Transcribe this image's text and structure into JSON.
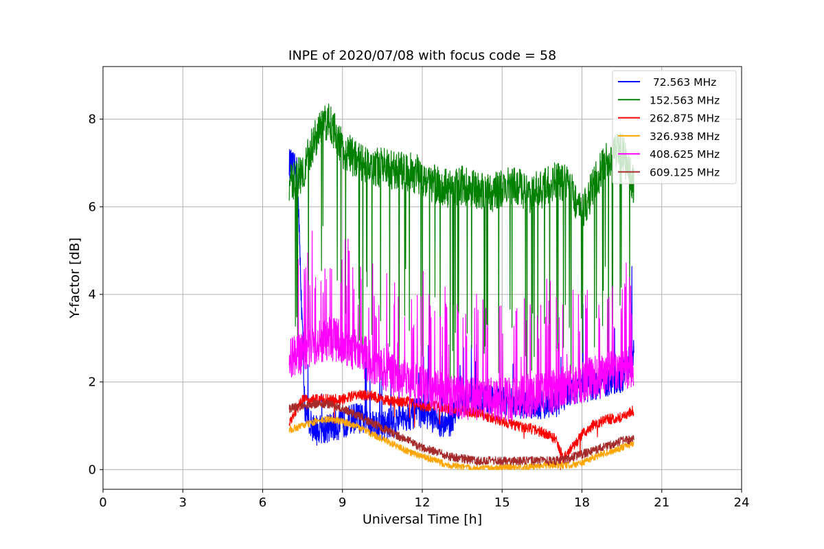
{
  "chart_data": {
    "type": "line",
    "title": "INPE of 2020/07/08 with focus code = 58",
    "xlabel": "Universal Time [h]",
    "ylabel": "Y-factor [dB]",
    "xlim": [
      0,
      24
    ],
    "ylim": [
      -0.45,
      9.2
    ],
    "xticks": [
      0,
      3,
      6,
      9,
      12,
      15,
      18,
      21,
      24
    ],
    "yticks": [
      0,
      2,
      4,
      6,
      8
    ],
    "grid": true,
    "legend_position": "top-right",
    "series": [
      {
        "name": " 72.563 MHz",
        "color": "#0000ff",
        "x": [
          7.0,
          7.3,
          7.6,
          8.0,
          8.5,
          9.0,
          9.5,
          10.0,
          10.5,
          11.0,
          11.5,
          12.0,
          12.5,
          13.0,
          13.5,
          14.0,
          14.5,
          15.0,
          15.5,
          16.0,
          16.5,
          17.0,
          17.5,
          18.0,
          18.5,
          19.0,
          19.5,
          19.95
        ],
        "y": [
          7.0,
          6.8,
          1.2,
          0.9,
          0.95,
          1.05,
          1.2,
          1.1,
          1.0,
          1.1,
          1.25,
          1.3,
          1.1,
          1.05,
          1.6,
          1.6,
          1.6,
          1.55,
          1.5,
          1.5,
          1.5,
          1.5,
          1.8,
          1.9,
          1.9,
          2.0,
          2.1,
          2.7
        ],
        "noise_amplitude": 0.35,
        "spike_probability": 0.02,
        "spike_height": 1.8
      },
      {
        "name": "152.563 MHz",
        "color": "#008000",
        "x": [
          7.0,
          7.5,
          8.0,
          8.5,
          9.0,
          9.5,
          10.0,
          10.5,
          11.0,
          11.5,
          12.0,
          12.5,
          13.0,
          13.5,
          14.0,
          14.5,
          15.0,
          15.5,
          16.0,
          16.5,
          17.0,
          17.5,
          18.0,
          18.5,
          19.0,
          19.5,
          19.95
        ],
        "y": [
          6.5,
          6.8,
          7.6,
          8.0,
          7.3,
          7.1,
          6.9,
          6.9,
          6.8,
          6.8,
          6.7,
          6.5,
          6.4,
          6.5,
          6.4,
          6.3,
          6.4,
          6.5,
          6.3,
          6.4,
          6.6,
          6.5,
          5.8,
          6.6,
          7.1,
          7.3,
          6.5
        ],
        "noise_amplitude": 0.45,
        "spike_probability": 0.05,
        "spike_height": -4.5
      },
      {
        "name": "262.875 MHz",
        "color": "#ff0000",
        "x": [
          7.0,
          7.5,
          8.0,
          8.5,
          9.0,
          9.5,
          10.0,
          10.5,
          11.0,
          11.5,
          12.0,
          12.5,
          13.0,
          13.5,
          14.0,
          14.5,
          15.0,
          15.5,
          16.0,
          16.5,
          17.0,
          17.3,
          17.7,
          18.0,
          18.5,
          19.0,
          19.5,
          19.95
        ],
        "y": [
          1.1,
          1.6,
          1.6,
          1.6,
          1.6,
          1.7,
          1.7,
          1.6,
          1.55,
          1.55,
          1.45,
          1.45,
          1.4,
          1.35,
          1.3,
          1.2,
          1.1,
          1.0,
          0.95,
          0.85,
          0.7,
          0.25,
          0.55,
          0.8,
          1.05,
          1.15,
          1.2,
          1.35
        ],
        "noise_amplitude": 0.12,
        "spike_probability": 0.004,
        "spike_height": -0.6
      },
      {
        "name": "326.938 MHz",
        "color": "#ffa500",
        "x": [
          7.0,
          7.5,
          8.0,
          8.5,
          9.0,
          9.5,
          10.0,
          10.5,
          11.0,
          11.5,
          12.0,
          12.5,
          13.0,
          13.5,
          14.0,
          14.5,
          15.0,
          15.5,
          16.0,
          16.5,
          17.0,
          17.5,
          18.0,
          18.5,
          19.0,
          19.5,
          19.95
        ],
        "y": [
          0.9,
          1.0,
          1.1,
          1.15,
          1.1,
          1.0,
          0.85,
          0.7,
          0.55,
          0.4,
          0.3,
          0.2,
          0.1,
          0.05,
          0.02,
          0.02,
          0.05,
          0.05,
          0.05,
          0.1,
          0.1,
          0.1,
          0.15,
          0.3,
          0.4,
          0.5,
          0.6
        ],
        "noise_amplitude": 0.08,
        "spike_probability": 0.0,
        "spike_height": 0
      },
      {
        "name": "408.625 MHz",
        "color": "#ff00ff",
        "x": [
          7.0,
          7.5,
          8.0,
          8.5,
          9.0,
          9.5,
          10.0,
          10.5,
          11.0,
          11.5,
          12.0,
          12.5,
          13.0,
          13.5,
          14.0,
          14.5,
          15.0,
          15.5,
          16.0,
          16.5,
          17.0,
          17.5,
          18.0,
          18.5,
          19.0,
          19.5,
          19.95
        ],
        "y": [
          2.5,
          2.7,
          2.9,
          3.0,
          2.9,
          2.7,
          2.5,
          2.3,
          2.1,
          2.0,
          1.9,
          1.8,
          1.7,
          1.65,
          1.6,
          1.6,
          1.6,
          1.6,
          1.7,
          1.7,
          1.8,
          1.9,
          2.0,
          2.1,
          2.2,
          2.3,
          2.3
        ],
        "noise_amplitude": 0.5,
        "spike_probability": 0.09,
        "spike_height": 2.2
      },
      {
        "name": "609.125 MHz",
        "color": "#a52a2a",
        "x": [
          7.0,
          7.5,
          8.0,
          8.5,
          9.0,
          9.5,
          10.0,
          10.5,
          11.0,
          11.5,
          12.0,
          12.5,
          13.0,
          13.5,
          14.0,
          14.5,
          15.0,
          15.5,
          16.0,
          16.5,
          17.0,
          17.5,
          18.0,
          18.5,
          19.0,
          19.5,
          19.95
        ],
        "y": [
          1.4,
          1.45,
          1.5,
          1.5,
          1.4,
          1.25,
          1.1,
          0.95,
          0.8,
          0.65,
          0.5,
          0.4,
          0.3,
          0.25,
          0.2,
          0.2,
          0.2,
          0.2,
          0.2,
          0.2,
          0.2,
          0.25,
          0.35,
          0.45,
          0.55,
          0.65,
          0.7
        ],
        "noise_amplitude": 0.1,
        "spike_probability": 0.0,
        "spike_height": 0
      }
    ]
  }
}
